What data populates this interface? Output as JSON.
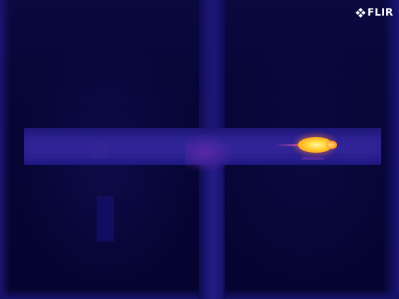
{
  "image": {
    "palette": "iron",
    "colors": {
      "background": "#050530",
      "structure": "#2a2090",
      "hot": "#ffd83a",
      "hottest": "#fff6a6"
    }
  },
  "logo": {
    "text": "FLIR",
    "icon": "flir-logo-icon"
  }
}
